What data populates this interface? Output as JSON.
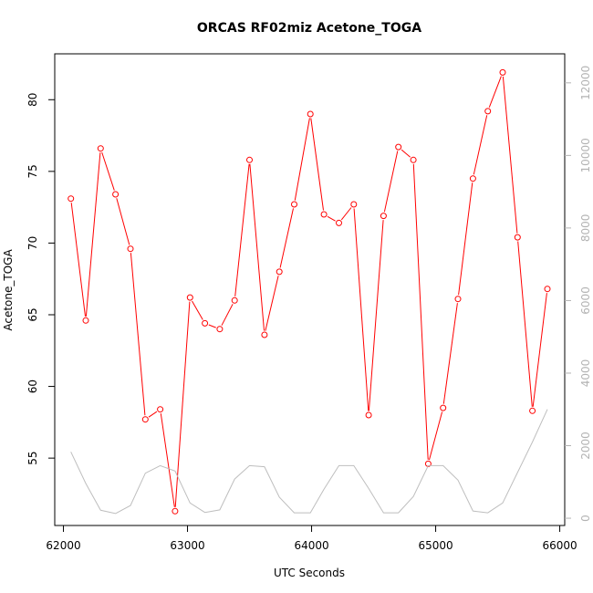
{
  "chart_data": {
    "type": "line",
    "title": "ORCAS RF02miz Acetone_TOGA",
    "xlabel": "UTC Seconds",
    "ylabel": "Acetone_TOGA",
    "xlim": [
      61930,
      66040
    ],
    "ylim": [
      50.3,
      83.2
    ],
    "y2lim": [
      -200,
      12800
    ],
    "x_ticks": [
      62000,
      63000,
      64000,
      65000,
      66000
    ],
    "y_ticks": [
      55,
      60,
      65,
      70,
      75,
      80
    ],
    "y2_ticks": [
      0,
      2000,
      4000,
      6000,
      8000,
      10000,
      12000
    ],
    "grid": false,
    "series": [
      {
        "color": "#ff0000",
        "axis": "left",
        "style": "line-points",
        "x": [
          62060,
          62180,
          62300,
          62420,
          62540,
          62660,
          62780,
          62900,
          63020,
          63140,
          63260,
          63380,
          63500,
          63620,
          63740,
          63860,
          63990,
          64100,
          64220,
          64340,
          64460,
          64580,
          64700,
          64820,
          64940,
          65060,
          65180,
          65300,
          65420,
          65540,
          65660,
          65780,
          65900
        ],
        "values": [
          73.1,
          64.6,
          76.6,
          73.4,
          69.6,
          57.7,
          58.4,
          51.3,
          66.2,
          64.4,
          64.0,
          66.0,
          75.8,
          63.6,
          68.0,
          72.7,
          79.0,
          72.0,
          71.4,
          72.7,
          58.0,
          71.9,
          76.7,
          75.8,
          54.6,
          58.5,
          66.1,
          74.5,
          79.2,
          81.9,
          70.4,
          58.3,
          66.8
        ]
      },
      {
        "color": "#bebebe",
        "axis": "right",
        "style": "line",
        "x": [
          62060,
          62180,
          62300,
          62420,
          62540,
          62660,
          62780,
          62900,
          63020,
          63140,
          63260,
          63380,
          63500,
          63620,
          63740,
          63860,
          63990,
          64100,
          64220,
          64340,
          64460,
          64580,
          64700,
          64820,
          64940,
          65060,
          65180,
          65300,
          65420,
          65540,
          65660,
          65780,
          65900
        ],
        "values": [
          1830,
          960,
          220,
          130,
          350,
          1240,
          1450,
          1300,
          420,
          160,
          230,
          1080,
          1450,
          1420,
          580,
          150,
          150,
          800,
          1450,
          1450,
          820,
          150,
          150,
          600,
          1450,
          1450,
          1050,
          200,
          150,
          420,
          1260,
          2100,
          3000
        ]
      }
    ]
  }
}
